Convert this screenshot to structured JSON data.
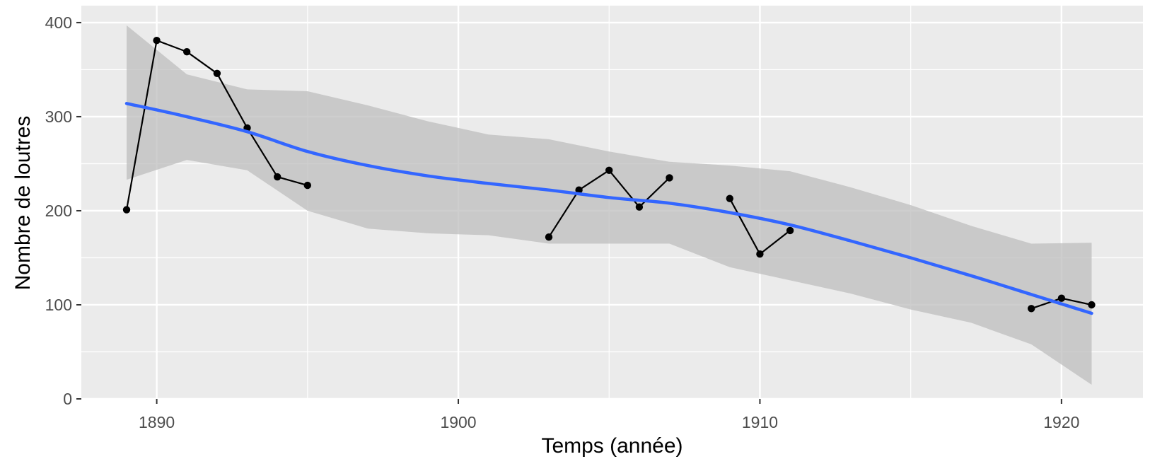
{
  "chart_data": {
    "type": "line",
    "title": "",
    "xlabel": "Temps (année)",
    "ylabel": "Nombre de loutres",
    "xlim": [
      1887.5,
      1922.7
    ],
    "ylim": [
      0,
      418
    ],
    "x_ticks": [
      1890,
      1900,
      1910,
      1920
    ],
    "x_tick_labels": [
      "1890",
      "1900",
      "1910",
      "1920"
    ],
    "y_ticks": [
      0,
      100,
      200,
      300,
      400
    ],
    "y_tick_labels": [
      "0",
      "100",
      "200",
      "300",
      "400"
    ],
    "grid": true,
    "legend": "none",
    "series": [
      {
        "type": "line+points",
        "color": "#000000",
        "segments": [
          [
            [
              1889,
              201
            ],
            [
              1890,
              381
            ],
            [
              1891,
              369
            ],
            [
              1892,
              346
            ],
            [
              1893,
              288
            ],
            [
              1894,
              236
            ],
            [
              1895,
              227
            ]
          ],
          [
            [
              1903,
              172
            ],
            [
              1904,
              222
            ],
            [
              1905,
              243
            ],
            [
              1906,
              204
            ],
            [
              1907,
              235
            ]
          ],
          [
            [
              1909,
              213
            ],
            [
              1910,
              154
            ],
            [
              1911,
              179
            ]
          ],
          [
            [
              1919,
              96
            ],
            [
              1920,
              107
            ],
            [
              1921,
              100
            ]
          ]
        ]
      },
      {
        "type": "smooth",
        "color": "#3366FF",
        "x": [
          1889,
          1891,
          1893,
          1895,
          1897,
          1899,
          1901,
          1903,
          1905,
          1907,
          1909,
          1911,
          1913,
          1915,
          1917,
          1919,
          1921
        ],
        "y": [
          314,
          300,
          284,
          263,
          248,
          237,
          229,
          222,
          214,
          208,
          198,
          185,
          168,
          150,
          131,
          111,
          91
        ],
        "ci_upper": [
          397,
          345,
          329,
          327,
          312,
          295,
          281,
          276,
          263,
          252,
          248,
          242,
          225,
          206,
          184,
          165,
          166
        ],
        "ci_lower": [
          233,
          254,
          243,
          200,
          181,
          176,
          174,
          165,
          165,
          165,
          140,
          126,
          112,
          95,
          81,
          58,
          15
        ],
        "ci_color": "#BEBEBE"
      }
    ]
  }
}
